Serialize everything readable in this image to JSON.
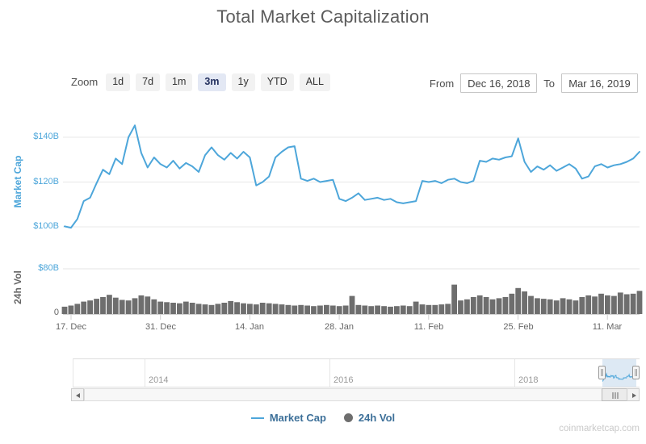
{
  "title": "Total Market Capitalization",
  "watermark": "coinmarketcap.com",
  "toolbar": {
    "zoom_label": "Zoom",
    "ranges": [
      "1d",
      "7d",
      "1m",
      "3m",
      "1y",
      "YTD",
      "ALL"
    ],
    "selected_range": "3m",
    "from_label": "From",
    "from_value": "Dec 16, 2018",
    "to_label": "To",
    "to_value": "Mar 16, 2019"
  },
  "axes": {
    "market_cap_title": "Market Cap",
    "market_cap_ticks": [
      "$140B",
      "$120B",
      "$100B"
    ],
    "volume_title": "24h Vol",
    "volume_tick_top": "$80B",
    "volume_tick_zero": "0",
    "x_ticks": [
      "17. Dec",
      "31. Dec",
      "14. Jan",
      "28. Jan",
      "11. Feb",
      "25. Feb",
      "11. Mar"
    ],
    "navigator_years": [
      "2014",
      "2016",
      "2018"
    ]
  },
  "legend": {
    "market_cap_label": "Market Cap",
    "volume_label": "24h Vol"
  },
  "colors": {
    "market_cap_line": "#4da6da",
    "volume_fill": "#6e6e6e",
    "axis_label_blue": "#4da6da",
    "axis_label_gray": "#666666",
    "legend_text": "#3d7099",
    "selected_button_bg": "#e3e8f4",
    "navigator_mask": "rgba(102,153,204,0.22)"
  },
  "chart_data": [
    {
      "type": "line",
      "name": "Market Cap",
      "unit": "$B",
      "x_start": "Dec 16, 2018",
      "x_end": "Mar 16, 2019",
      "interval": "daily",
      "ylim": [
        95,
        150
      ],
      "yticks": [
        100,
        120,
        140
      ],
      "grid": true,
      "values": [
        100.2,
        99.6,
        103.5,
        111.5,
        113.0,
        119.5,
        125.5,
        123.5,
        130.5,
        128.0,
        140.0,
        145.3,
        133.0,
        126.5,
        131.0,
        128.0,
        126.5,
        129.5,
        126.0,
        128.5,
        127.0,
        124.5,
        132.0,
        135.5,
        132.0,
        130.0,
        133.0,
        130.5,
        133.5,
        131.0,
        118.5,
        120.0,
        122.5,
        131.0,
        133.5,
        135.5,
        136.0,
        121.5,
        120.5,
        121.5,
        120.0,
        120.5,
        121.0,
        112.5,
        111.5,
        113.0,
        115.0,
        112.0,
        112.5,
        113.0,
        112.0,
        112.5,
        111.0,
        110.5,
        111.0,
        111.5,
        120.5,
        120.0,
        120.5,
        119.5,
        121.0,
        121.5,
        120.0,
        119.5,
        120.5,
        129.5,
        129.0,
        130.5,
        130.0,
        131.0,
        131.5,
        139.5,
        129.0,
        124.5,
        127.0,
        125.5,
        127.5,
        125.0,
        126.5,
        128.0,
        126.0,
        121.5,
        122.5,
        127.0,
        128.0,
        126.5,
        127.5,
        128.0,
        129.0,
        130.5,
        133.5
      ]
    },
    {
      "type": "area",
      "name": "24h Vol",
      "unit": "$B",
      "x_start": "Dec 16, 2018",
      "x_end": "Mar 16, 2019",
      "interval": "daily",
      "ylim": [
        0,
        80
      ],
      "yticks": [
        0,
        80
      ],
      "values": [
        13,
        15,
        18,
        22,
        24,
        27,
        30,
        34,
        29,
        25,
        24,
        28,
        33,
        31,
        26,
        22,
        21,
        20,
        19,
        22,
        20,
        18,
        17,
        16,
        18,
        20,
        23,
        21,
        19,
        18,
        17,
        20,
        19,
        18,
        17,
        16,
        15,
        16,
        15,
        14,
        15,
        16,
        15,
        14,
        15,
        32,
        16,
        15,
        14,
        15,
        14,
        13,
        14,
        15,
        14,
        22,
        17,
        16,
        16,
        17,
        18,
        52,
        24,
        26,
        30,
        33,
        30,
        26,
        28,
        30,
        36,
        46,
        40,
        32,
        28,
        27,
        26,
        24,
        28,
        26,
        24,
        30,
        33,
        31,
        36,
        33,
        32,
        38,
        35,
        36,
        41
      ]
    }
  ]
}
